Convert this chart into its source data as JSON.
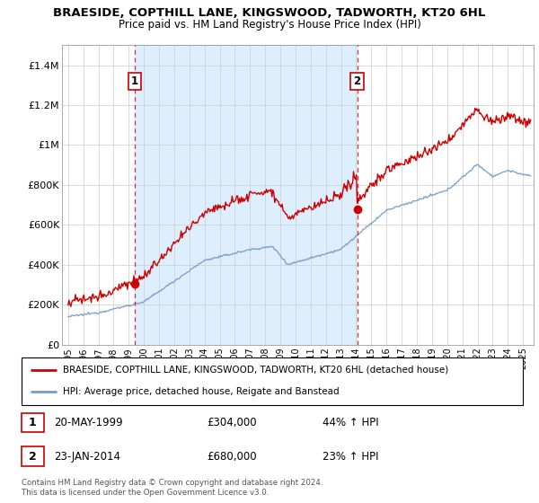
{
  "title": "BRAESIDE, COPTHILL LANE, KINGSWOOD, TADWORTH, KT20 6HL",
  "subtitle": "Price paid vs. HM Land Registry's House Price Index (HPI)",
  "legend_line1": "BRAESIDE, COPTHILL LANE, KINGSWOOD, TADWORTH, KT20 6HL (detached house)",
  "legend_line2": "HPI: Average price, detached house, Reigate and Banstead",
  "sale1_date": "20-MAY-1999",
  "sale1_price": "£304,000",
  "sale1_hpi": "44% ↑ HPI",
  "sale2_date": "23-JAN-2014",
  "sale2_price": "£680,000",
  "sale2_hpi": "23% ↑ HPI",
  "footer": "Contains HM Land Registry data © Crown copyright and database right 2024.\nThis data is licensed under the Open Government Licence v3.0.",
  "red_color": "#cc0000",
  "blue_color": "#7799cc",
  "blue_fill": "#ddeeff",
  "sale1_x": 1999.38,
  "sale1_y": 304000,
  "sale2_x": 2014.06,
  "sale2_y": 680000,
  "ylim": [
    0,
    1500000
  ],
  "xlim": [
    1994.6,
    2025.7
  ],
  "yticks": [
    0,
    200000,
    400000,
    600000,
    800000,
    1000000,
    1200000,
    1400000
  ],
  "ytick_labels": [
    "£0",
    "£200K",
    "£400K",
    "£600K",
    "£800K",
    "£1M",
    "£1.2M",
    "£1.4M"
  ],
  "xticks": [
    1995,
    1996,
    1997,
    1998,
    1999,
    2000,
    2001,
    2002,
    2003,
    2004,
    2005,
    2006,
    2007,
    2008,
    2009,
    2010,
    2011,
    2012,
    2013,
    2014,
    2015,
    2016,
    2017,
    2018,
    2019,
    2020,
    2021,
    2022,
    2023,
    2024,
    2025
  ]
}
